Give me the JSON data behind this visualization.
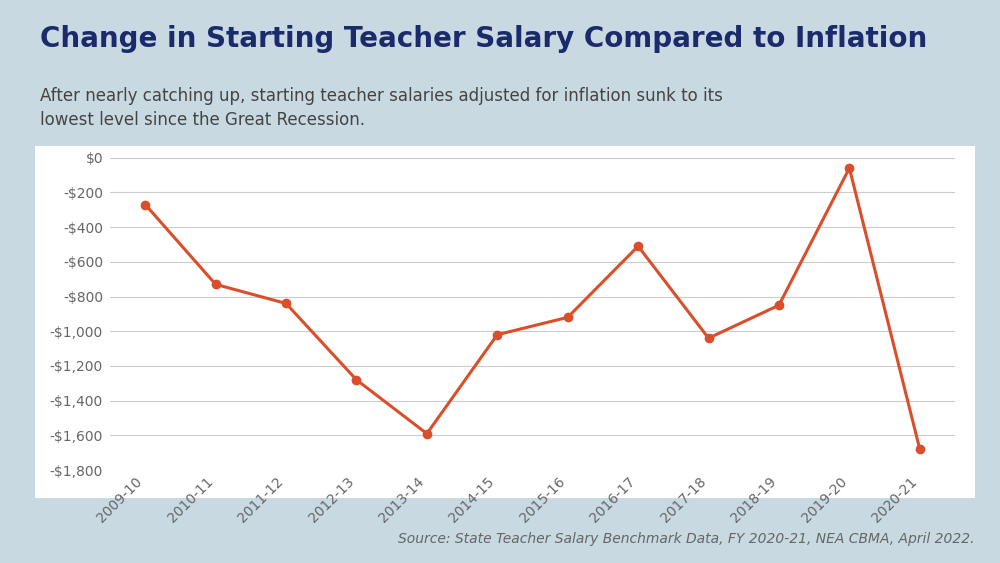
{
  "title": "Change in Starting Teacher Salary Compared to Inflation",
  "subtitle": "After nearly catching up, starting teacher salaries adjusted for inflation sunk to its\nlowest level since the Great Recession.",
  "source": "Source: State Teacher Salary Benchmark Data, FY 2020-21, NEA CBMA, April 2022.",
  "categories": [
    "2009-10",
    "2010-11",
    "2011-12",
    "2012-13",
    "2013-14",
    "2014-15",
    "2015-16",
    "2016-17",
    "2017-18",
    "2018-19",
    "2019-20",
    "2020-21"
  ],
  "values": [
    -270,
    -730,
    -840,
    -1280,
    -1590,
    -1020,
    -920,
    -510,
    -1040,
    -850,
    -60,
    -1680
  ],
  "line_color": "#D94F2B",
  "marker_color": "#D94F2B",
  "background_outer": "#C8D9E2",
  "background_chart": "#FFFFFF",
  "title_color": "#1B2A6B",
  "subtitle_color": "#444444",
  "source_color": "#666666",
  "grid_color": "#CCCCCC",
  "tick_color": "#666666",
  "ylim": [
    -1800,
    0
  ],
  "yticks": [
    0,
    -200,
    -400,
    -600,
    -800,
    -1000,
    -1200,
    -1400,
    -1600,
    -1800
  ],
  "title_fontsize": 20,
  "subtitle_fontsize": 12,
  "source_fontsize": 10,
  "axis_fontsize": 10
}
